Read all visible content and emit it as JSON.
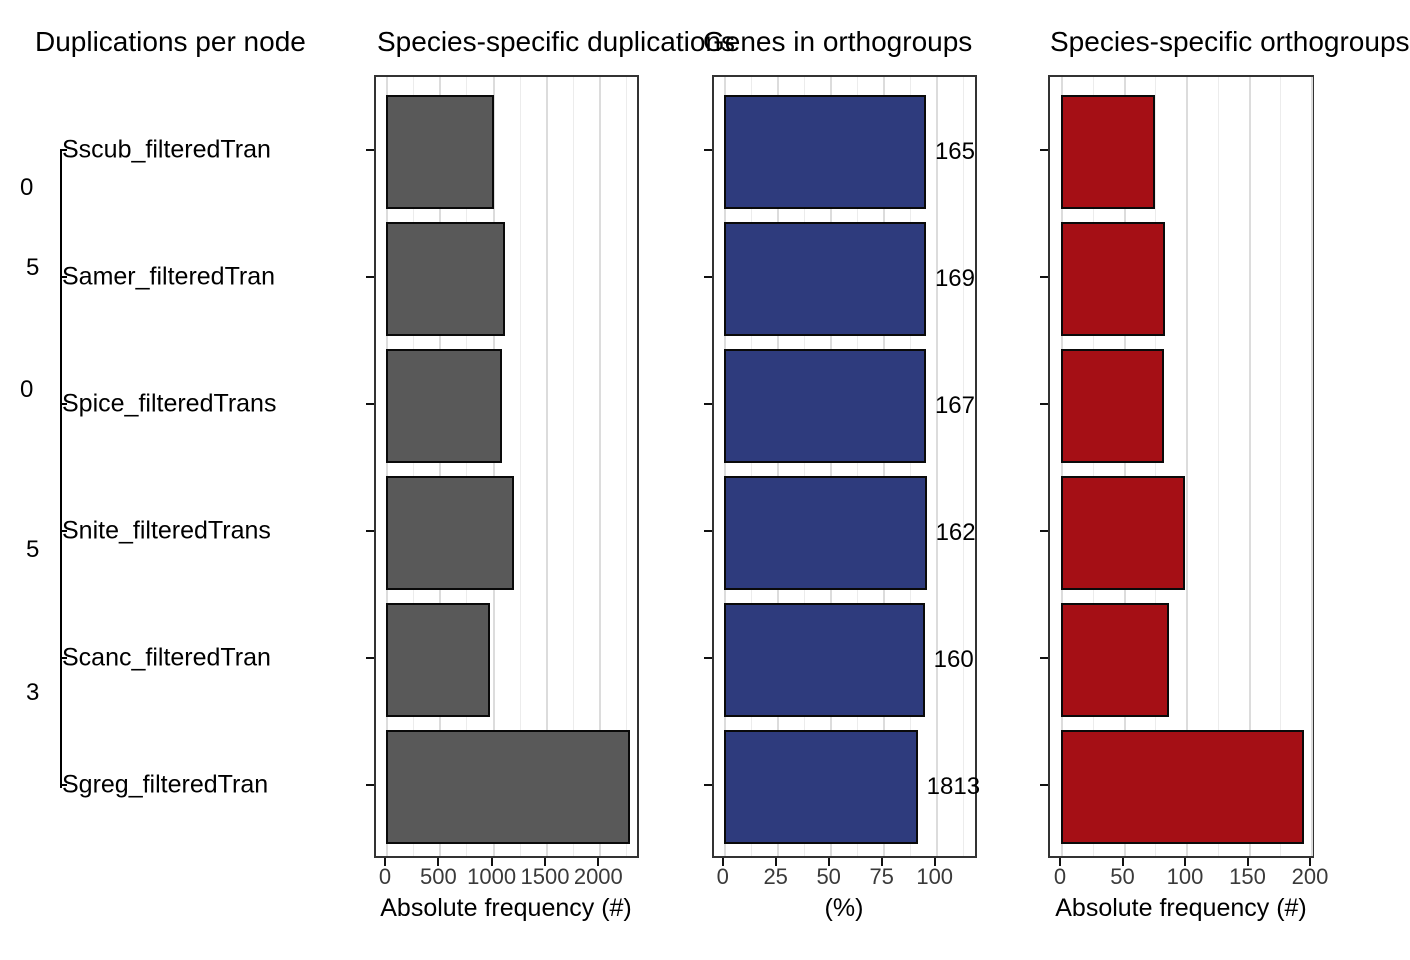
{
  "figure": {
    "background": "#ffffff",
    "species_labels": [
      "Sscub_filteredTran",
      "Samer_filteredTran",
      "Spice_filteredTrans",
      "Snite_filteredTrans",
      "Scanc_filteredTran",
      "Sgreg_filteredTran"
    ]
  },
  "chart_data": [
    {
      "type": "tree",
      "title": "Duplications per node",
      "tips": [
        "Sscub_filteredTran",
        "Samer_filteredTran",
        "Spice_filteredTrans",
        "Snite_filteredTrans",
        "Scanc_filteredTran",
        "Sgreg_filteredTran"
      ],
      "node_label_fragments": [
        {
          "text": "0",
          "y": 188
        },
        {
          "text": "5",
          "y": 268
        },
        {
          "text": "0",
          "y": 390
        },
        {
          "text": "5",
          "y": 550
        },
        {
          "text": "3",
          "y": 693
        }
      ]
    },
    {
      "type": "bar",
      "title": "Species-specific duplications",
      "xlabel": "Absolute frequency (#)",
      "categories": [
        "Sscub_filteredTran",
        "Samer_filteredTran",
        "Spice_filteredTrans",
        "Snite_filteredTrans",
        "Scanc_filteredTran",
        "Sgreg_filteredTran"
      ],
      "values": [
        1010,
        1115,
        1085,
        1200,
        975,
        2290
      ],
      "x_ticks": [
        0,
        500,
        1000,
        1500,
        2000
      ],
      "xlim": [
        0,
        2380
      ],
      "grid": true,
      "bar_color": "#595959"
    },
    {
      "type": "bar",
      "title": "Genes in orthogroups",
      "xlabel": "(%)",
      "categories": [
        "Sscub_filteredTran",
        "Samer_filteredTran",
        "Spice_filteredTrans",
        "Snite_filteredTrans",
        "Scanc_filteredTran",
        "Sgreg_filteredTran"
      ],
      "values": [
        95.4,
        95.4,
        95.4,
        95.7,
        94.8,
        91.5
      ],
      "bar_labels": [
        "165",
        "169",
        "167",
        "162",
        "160",
        "1813"
      ],
      "x_ticks": [
        0,
        25,
        50,
        75,
        100
      ],
      "xlim": [
        0,
        120
      ],
      "grid": true,
      "bar_color": "#2E3B7D"
    },
    {
      "type": "bar",
      "title": "Species-specific orthogroups",
      "xlabel": "Absolute frequency (#)",
      "categories": [
        "Sscub_filteredTran",
        "Samer_filteredTran",
        "Spice_filteredTrans",
        "Snite_filteredTrans",
        "Scanc_filteredTran",
        "Sgreg_filteredTran"
      ],
      "values": [
        75,
        83,
        82,
        99,
        86,
        194
      ],
      "x_ticks": [
        0,
        50,
        100,
        150,
        200
      ],
      "xlim": [
        0,
        203
      ],
      "grid": true,
      "bar_color": "#A50F15"
    }
  ],
  "style": {
    "bar_border_color": "#0a0a0a",
    "panel_border_color": "#333333",
    "grid_major_color": "#dcdcdc",
    "grid_minor_color": "#ececec",
    "tick_label_color": "#3a3a3a"
  }
}
